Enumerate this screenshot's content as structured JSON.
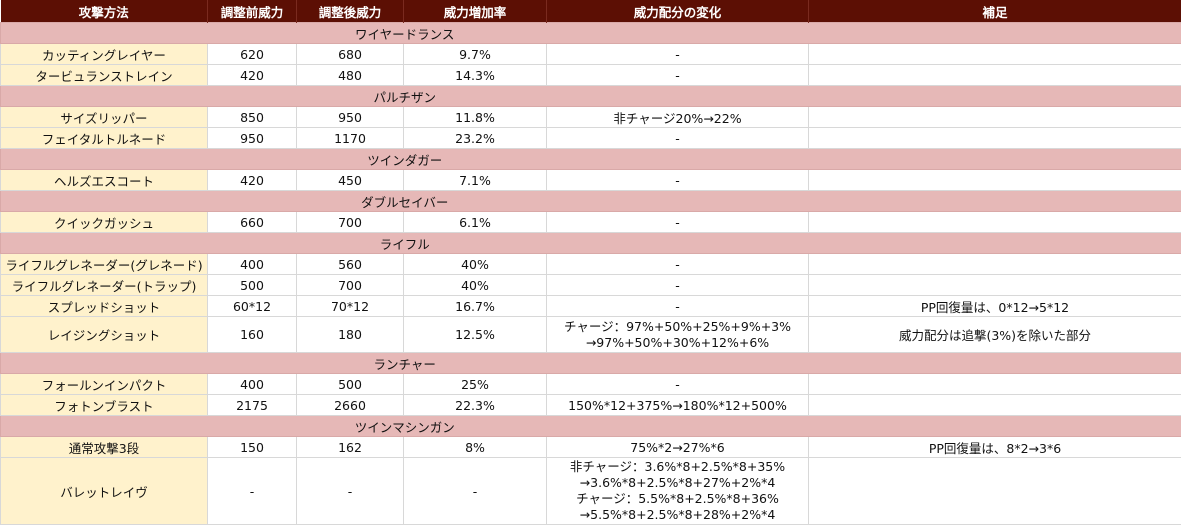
{
  "headers": [
    "攻撃方法",
    "調整前威力",
    "調整後威力",
    "威力増加率",
    "威力配分の変化",
    "補足"
  ],
  "sections": [
    {
      "title": "ワイヤードランス",
      "rows": [
        {
          "name": "カッティングレイヤー",
          "before": "620",
          "after": "680",
          "rate": "9.7%",
          "change": [
            "-"
          ],
          "note": [
            ""
          ]
        },
        {
          "name": "タービュランストレイン",
          "before": "420",
          "after": "480",
          "rate": "14.3%",
          "change": [
            "-"
          ],
          "note": [
            ""
          ]
        }
      ]
    },
    {
      "title": "パルチザン",
      "rows": [
        {
          "name": "サイズリッパー",
          "before": "850",
          "after": "950",
          "rate": "11.8%",
          "change": [
            "非チャージ20%→22%"
          ],
          "note": [
            ""
          ]
        },
        {
          "name": "フェイタルトルネード",
          "before": "950",
          "after": "1170",
          "rate": "23.2%",
          "change": [
            "-"
          ],
          "note": [
            ""
          ]
        }
      ]
    },
    {
      "title": "ツインダガー",
      "rows": [
        {
          "name": "ヘルズエスコート",
          "before": "420",
          "after": "450",
          "rate": "7.1%",
          "change": [
            "-"
          ],
          "note": [
            ""
          ]
        }
      ]
    },
    {
      "title": "ダブルセイバー",
      "rows": [
        {
          "name": "クイックガッシュ",
          "before": "660",
          "after": "700",
          "rate": "6.1%",
          "change": [
            "-"
          ],
          "note": [
            ""
          ]
        }
      ]
    },
    {
      "title": "ライフル",
      "rows": [
        {
          "name": "ライフルグレネーダー(グレネード)",
          "before": "400",
          "after": "560",
          "rate": "40%",
          "change": [
            "-"
          ],
          "note": [
            ""
          ]
        },
        {
          "name": "ライフルグレネーダー(トラップ)",
          "before": "500",
          "after": "700",
          "rate": "40%",
          "change": [
            "-"
          ],
          "note": [
            ""
          ]
        },
        {
          "name": "スプレッドショット",
          "before": "60*12",
          "after": "70*12",
          "rate": "16.7%",
          "change": [
            "-"
          ],
          "note": [
            "PP回復量は、0*12→5*12"
          ]
        },
        {
          "name": "レイジングショット",
          "before": "160",
          "after": "180",
          "rate": "12.5%",
          "change": [
            "チャージ：97%+50%+25%+9%+3%",
            "→97%+50%+30%+12%+6%"
          ],
          "note": [
            "威力配分は追撃(3%)を除いた部分"
          ]
        }
      ]
    },
    {
      "title": "ランチャー",
      "rows": [
        {
          "name": "フォールンインパクト",
          "before": "400",
          "after": "500",
          "rate": "25%",
          "change": [
            "-"
          ],
          "note": [
            ""
          ]
        },
        {
          "name": "フォトンブラスト",
          "before": "2175",
          "after": "2660",
          "rate": "22.3%",
          "change": [
            "150%*12+375%→180%*12+500%"
          ],
          "note": [
            ""
          ]
        }
      ]
    },
    {
      "title": "ツインマシンガン",
      "rows": [
        {
          "name": "通常攻撃3段",
          "before": "150",
          "after": "162",
          "rate": "8%",
          "change": [
            "75%*2→27%*6"
          ],
          "note": [
            "PP回復量は、8*2→3*6"
          ]
        },
        {
          "name": "バレットレイヴ",
          "before": "-",
          "after": "-",
          "rate": "-",
          "change": [
            "非チャージ：3.6%*8+2.5%*8+35%",
            "→3.6%*8+2.5%*8+27%+2%*4",
            "チャージ：5.5%*8+2.5%*8+36%",
            "→5.5%*8+2.5%*8+28%+2%*4"
          ],
          "note": [
            ""
          ]
        }
      ]
    }
  ]
}
